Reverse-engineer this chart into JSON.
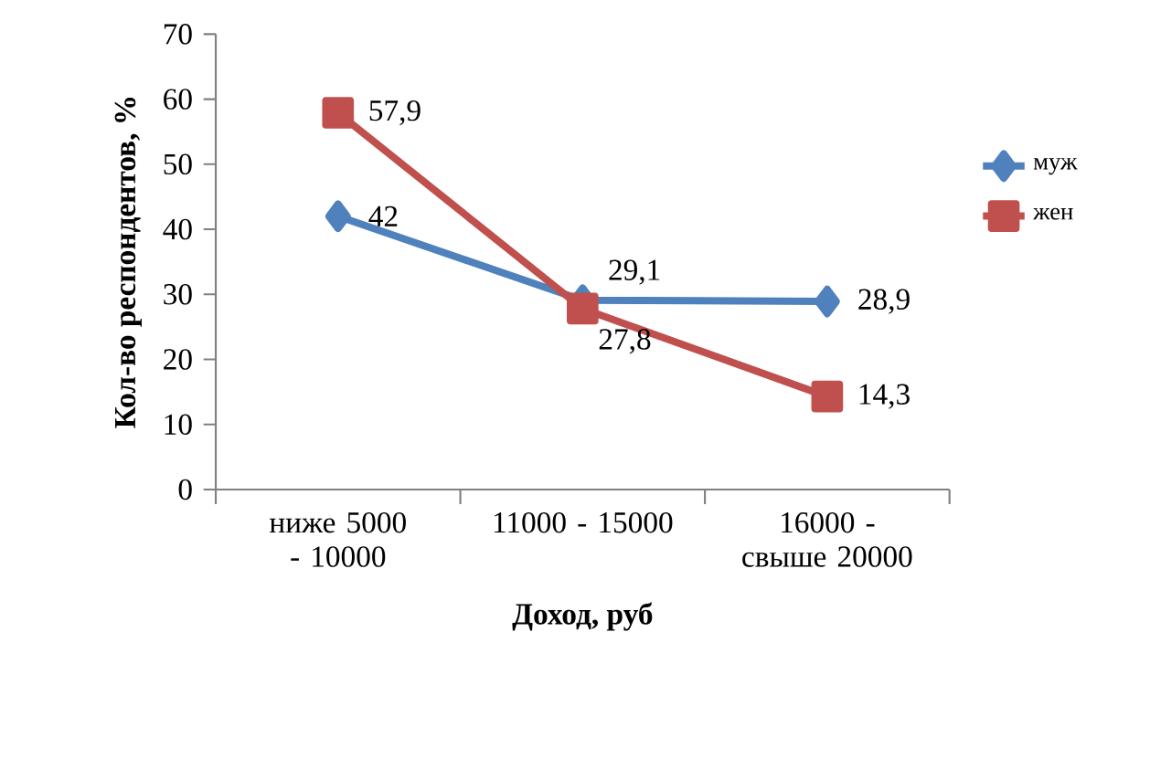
{
  "chart_data": {
    "type": "line",
    "categories": [
      "ниже 5000 - 10000",
      "11000 - 15000",
      "16000 - свыше 20000"
    ],
    "series": [
      {
        "name": "муж",
        "color": "#4f81bd",
        "marker": "diamond",
        "values": [
          42,
          29.1,
          28.9
        ],
        "value_labels": [
          "42",
          "29,1",
          "28,9"
        ]
      },
      {
        "name": "жен",
        "color": "#c0504d",
        "marker": "square",
        "values": [
          57.9,
          27.8,
          14.3
        ],
        "value_labels": [
          "57,9",
          "27,8",
          "14,3"
        ]
      }
    ],
    "xlabel": "Доход, руб",
    "ylabel": "Кол-во респондентов, %",
    "ylim": [
      0,
      70
    ],
    "yticks": [
      0,
      10,
      20,
      30,
      40,
      50,
      60,
      70
    ],
    "grid": false,
    "legend": "right"
  }
}
